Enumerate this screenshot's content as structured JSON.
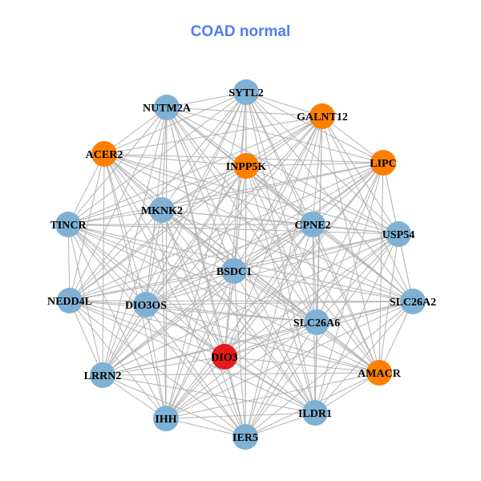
{
  "title": "COAD normal",
  "colors": {
    "title": "#4f7df0",
    "normal": "#7fb1d4",
    "highlight": "#ff7f00",
    "target": "#e41a1c",
    "edge": "#b3b3b3"
  },
  "nodes": [
    {
      "label": "SYTL2",
      "group": "normal"
    },
    {
      "label": "NUTM2A",
      "group": "normal"
    },
    {
      "label": "GALNT12",
      "group": "highlight"
    },
    {
      "label": "ACER2",
      "group": "highlight"
    },
    {
      "label": "INPP5K",
      "group": "highlight"
    },
    {
      "label": "LIPC",
      "group": "highlight"
    },
    {
      "label": "MKNK2",
      "group": "normal"
    },
    {
      "label": "TINCR",
      "group": "normal"
    },
    {
      "label": "CPNE2",
      "group": "normal"
    },
    {
      "label": "USP54",
      "group": "normal"
    },
    {
      "label": "BSDC1",
      "group": "normal"
    },
    {
      "label": "NEDD4L",
      "group": "normal"
    },
    {
      "label": "DIO3OS",
      "group": "normal"
    },
    {
      "label": "SLC26A6",
      "group": "normal"
    },
    {
      "label": "SLC26A2",
      "group": "normal"
    },
    {
      "label": "DIO3",
      "group": "target"
    },
    {
      "label": "AMACR",
      "group": "highlight"
    },
    {
      "label": "LRRN2",
      "group": "normal"
    },
    {
      "label": "IHH",
      "group": "normal"
    },
    {
      "label": "ILDR1",
      "group": "normal"
    },
    {
      "label": "IER5",
      "group": "normal"
    }
  ]
}
